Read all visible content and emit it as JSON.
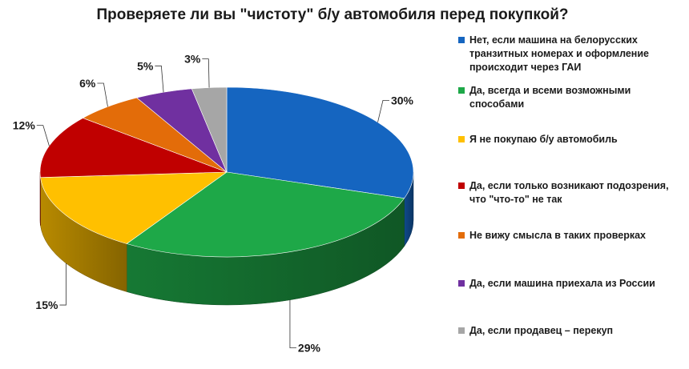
{
  "chart_data": {
    "type": "pie",
    "title": "Проверяете ли вы \"чистоту\" б/у автомобиля перед покупкой?",
    "legend_position": "right",
    "slices": [
      {
        "label": "Нет, если машина  на белорусских транзитных номерах и оформление происходит через ГАИ",
        "value": 30,
        "value_label": "30%",
        "color": "#1565C0"
      },
      {
        "label": "Да, всегда и всеми возможными способами",
        "value": 29,
        "value_label": "29%",
        "color": "#1EA848"
      },
      {
        "label": "Я не покупаю  б/у автомобиль",
        "value": 15,
        "value_label": "15%",
        "color": "#FFC000"
      },
      {
        "label": "Да,  если только  возникают подозрения,  что \"что-то\"  не так",
        "value": 12,
        "value_label": "12%",
        "color": "#C00000"
      },
      {
        "label": "Не вижу смысла в таких проверках",
        "value": 6,
        "value_label": "6%",
        "color": "#E36C09"
      },
      {
        "label": "Да, если машина  приехала из России",
        "value": 5,
        "value_label": "5%",
        "color": "#7030A0"
      },
      {
        "label": "Да, если продавец  – перекуп",
        "value": 3,
        "value_label": "3%",
        "color": "#A6A6A6"
      }
    ]
  }
}
